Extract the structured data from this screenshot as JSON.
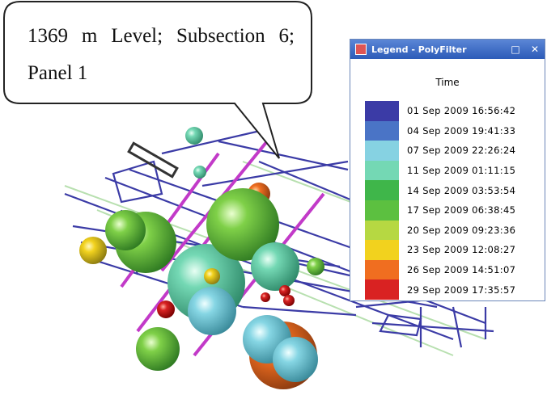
{
  "callout": {
    "text": "1369 m Level; Subsection 6; Panel 1"
  },
  "legend_window": {
    "title": "Legend - PolyFilter",
    "heading": "Time",
    "items": [
      {
        "label": "01 Sep 2009 16:56:42",
        "color": "#3b3ba6"
      },
      {
        "label": "04 Sep 2009 19:41:33",
        "color": "#4a74c6"
      },
      {
        "label": "07 Sep 2009 22:26:24",
        "color": "#86d2e2"
      },
      {
        "label": "11 Sep 2009 01:11:15",
        "color": "#74d8b4"
      },
      {
        "label": "14 Sep 2009 03:53:54",
        "color": "#3fb64a"
      },
      {
        "label": "17 Sep 2009 06:38:45",
        "color": "#5cc040"
      },
      {
        "label": "20 Sep 2009 09:23:36",
        "color": "#b6d842"
      },
      {
        "label": "23 Sep 2009 12:08:27",
        "color": "#f2d21e"
      },
      {
        "label": "26 Sep 2009 14:51:07",
        "color": "#f06e20"
      },
      {
        "label": "29 Sep 2009 17:35:57",
        "color": "#d92222"
      }
    ]
  }
}
